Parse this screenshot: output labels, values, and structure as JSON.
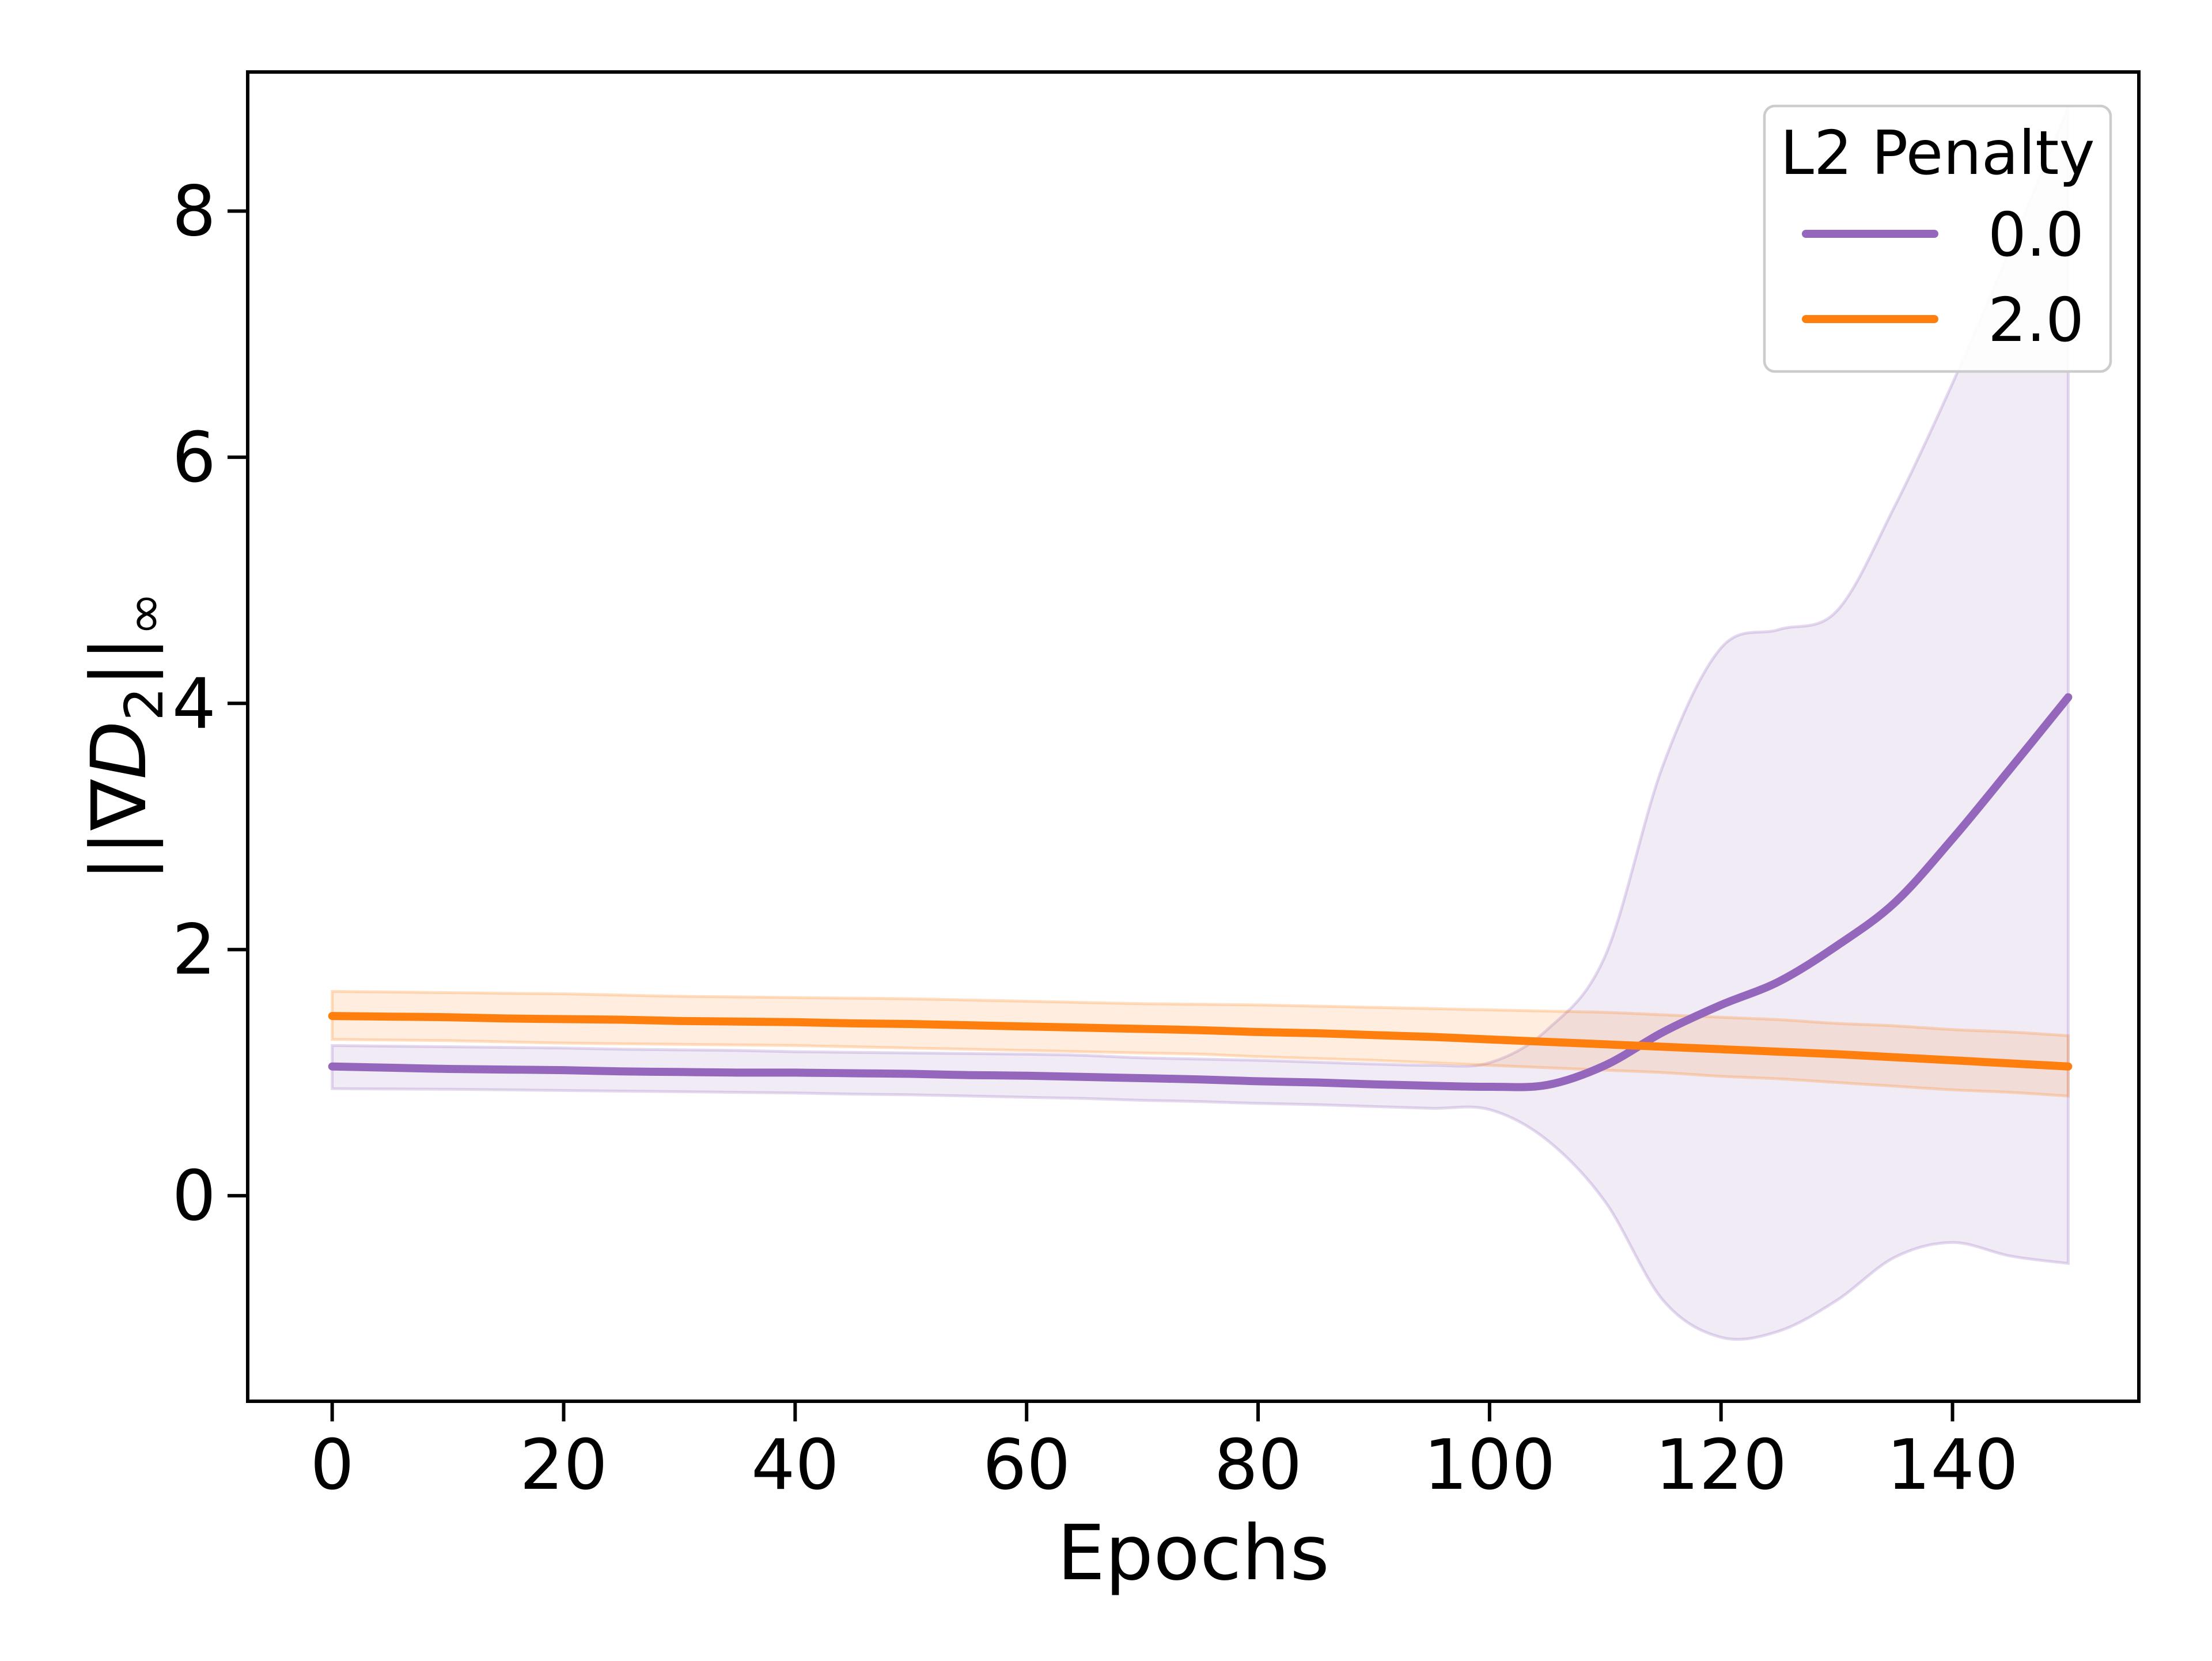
{
  "chart_data": {
    "type": "line",
    "title": "",
    "xlabel": "Epochs",
    "ylabel": "||∇D₂||∞",
    "ylabel_parts": [
      {
        "t": "||∇",
        "style": "normal"
      },
      {
        "t": "D",
        "style": "italic"
      },
      {
        "t": "2",
        "style": "sub"
      },
      {
        "t": "||",
        "style": "normal"
      },
      {
        "t": "∞",
        "style": "sub"
      }
    ],
    "legend": {
      "title": "L2 Penalty",
      "position": "upper right",
      "border_color": "#cccccc",
      "entries": [
        {
          "label": "0.0",
          "color": "#9467bd"
        },
        {
          "label": "2.0",
          "color": "#ff7f0e"
        }
      ]
    },
    "x": [
      0,
      5,
      10,
      15,
      20,
      25,
      30,
      35,
      40,
      45,
      50,
      55,
      60,
      65,
      70,
      75,
      80,
      85,
      90,
      95,
      100,
      105,
      110,
      115,
      120,
      125,
      130,
      135,
      140,
      145,
      150
    ],
    "series": [
      {
        "name": "0.0",
        "color": "#9467bd",
        "values": [
          1.05,
          1.04,
          1.03,
          1.025,
          1.02,
          1.01,
          1.005,
          1.0,
          1.0,
          0.995,
          0.99,
          0.98,
          0.975,
          0.965,
          0.955,
          0.945,
          0.93,
          0.92,
          0.905,
          0.893,
          0.885,
          0.9,
          1.06,
          1.33,
          1.55,
          1.74,
          2.03,
          2.38,
          2.9,
          3.47,
          4.05
        ],
        "band_upper": [
          1.22,
          1.215,
          1.21,
          1.205,
          1.2,
          1.19,
          1.185,
          1.18,
          1.17,
          1.165,
          1.16,
          1.155,
          1.15,
          1.14,
          1.12,
          1.11,
          1.1,
          1.085,
          1.07,
          1.06,
          1.08,
          1.35,
          1.95,
          3.5,
          4.45,
          4.6,
          4.75,
          5.6,
          6.6,
          7.7,
          8.85
        ],
        "band_lower": [
          0.87,
          0.867,
          0.865,
          0.86,
          0.855,
          0.85,
          0.845,
          0.84,
          0.835,
          0.825,
          0.82,
          0.81,
          0.8,
          0.79,
          0.775,
          0.765,
          0.75,
          0.74,
          0.725,
          0.71,
          0.7,
          0.45,
          -0.05,
          -0.85,
          -1.15,
          -1.1,
          -0.85,
          -0.5,
          -0.38,
          -0.49,
          -0.55
        ]
      },
      {
        "name": "2.0",
        "color": "#ff7f0e",
        "values": [
          1.46,
          1.455,
          1.45,
          1.44,
          1.435,
          1.43,
          1.42,
          1.415,
          1.41,
          1.4,
          1.395,
          1.385,
          1.375,
          1.365,
          1.355,
          1.345,
          1.33,
          1.32,
          1.305,
          1.29,
          1.27,
          1.25,
          1.23,
          1.21,
          1.19,
          1.17,
          1.15,
          1.125,
          1.1,
          1.075,
          1.05
        ],
        "band_upper": [
          1.66,
          1.655,
          1.65,
          1.645,
          1.64,
          1.63,
          1.62,
          1.615,
          1.61,
          1.605,
          1.6,
          1.59,
          1.58,
          1.57,
          1.56,
          1.555,
          1.55,
          1.54,
          1.53,
          1.52,
          1.51,
          1.5,
          1.49,
          1.47,
          1.45,
          1.43,
          1.4,
          1.38,
          1.35,
          1.33,
          1.3
        ],
        "band_lower": [
          1.27,
          1.265,
          1.26,
          1.25,
          1.24,
          1.235,
          1.23,
          1.225,
          1.22,
          1.21,
          1.2,
          1.19,
          1.18,
          1.17,
          1.16,
          1.15,
          1.13,
          1.115,
          1.1,
          1.08,
          1.06,
          1.04,
          1.02,
          1.0,
          0.97,
          0.95,
          0.92,
          0.89,
          0.86,
          0.84,
          0.81
        ]
      }
    ],
    "xlim": [
      -7.3,
      156.1
    ],
    "ylim": [
      -1.67,
      9.13
    ],
    "xticks": [
      0,
      20,
      40,
      60,
      80,
      100,
      120,
      140
    ],
    "yticks": [
      0,
      2,
      4,
      6,
      8
    ],
    "grid": false,
    "band_fill_alpha": 0.13,
    "band_edge_alpha": 0.25,
    "spine_color": "#000000",
    "background_color": "#ffffff"
  }
}
